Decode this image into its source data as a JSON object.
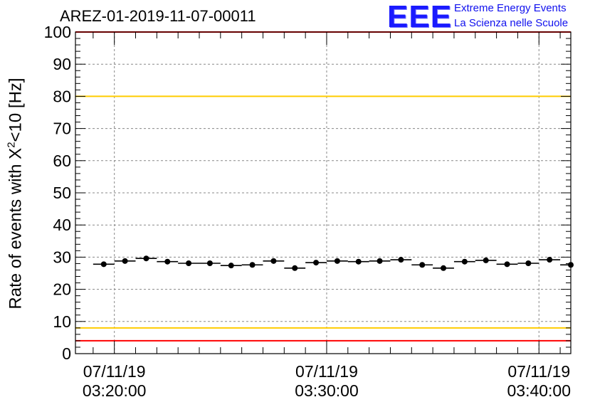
{
  "title": "AREZ-01-2019-11-07-00011",
  "logo": {
    "mark": "EEE",
    "line1": "Extreme Energy Events",
    "line2": "La Scienza nelle Scuole"
  },
  "colors": {
    "frame": "#000000",
    "grid": "#888888",
    "red_line": "#ff0000",
    "yellow_line": "#ffcc00",
    "marker": "#000000",
    "logo_blue": "#1a1aff"
  },
  "chart_data": {
    "type": "scatter",
    "title": "AREZ-01-2019-11-07-00011",
    "ylabel_prefix": "Rate of events with X",
    "ylabel_sup": "2",
    "ylabel_suffix": "<10 [Hz]",
    "ylim": [
      0,
      100
    ],
    "yticks": [
      0,
      10,
      20,
      30,
      40,
      50,
      60,
      70,
      80,
      90,
      100
    ],
    "xlim": [
      "2019-11-07 03:18:10",
      "2019-11-07 03:41:30"
    ],
    "xticks": [
      {
        "t": "2019-11-07 03:20:00",
        "date": "07/11/19",
        "time": "03:20:00"
      },
      {
        "t": "2019-11-07 03:30:00",
        "date": "07/11/19",
        "time": "03:30:00"
      },
      {
        "t": "2019-11-07 03:40:00",
        "date": "07/11/19",
        "time": "03:40:00"
      }
    ],
    "grid": true,
    "reference_lines": [
      {
        "y": 100,
        "color": "red"
      },
      {
        "y": 80,
        "color": "yellow"
      },
      {
        "y": 8,
        "color": "yellow"
      },
      {
        "y": 4,
        "color": "red"
      }
    ],
    "bin_width_seconds": 60,
    "points": [
      {
        "t": "2019-11-07 03:19:30",
        "y": 27.8
      },
      {
        "t": "2019-11-07 03:20:30",
        "y": 28.8
      },
      {
        "t": "2019-11-07 03:21:30",
        "y": 29.6
      },
      {
        "t": "2019-11-07 03:22:30",
        "y": 28.6
      },
      {
        "t": "2019-11-07 03:23:30",
        "y": 28.1
      },
      {
        "t": "2019-11-07 03:24:30",
        "y": 28.1
      },
      {
        "t": "2019-11-07 03:25:30",
        "y": 27.4
      },
      {
        "t": "2019-11-07 03:26:30",
        "y": 27.6
      },
      {
        "t": "2019-11-07 03:27:30",
        "y": 28.8
      },
      {
        "t": "2019-11-07 03:28:30",
        "y": 26.6
      },
      {
        "t": "2019-11-07 03:29:30",
        "y": 28.3
      },
      {
        "t": "2019-11-07 03:30:30",
        "y": 28.8
      },
      {
        "t": "2019-11-07 03:31:30",
        "y": 28.6
      },
      {
        "t": "2019-11-07 03:32:30",
        "y": 28.8
      },
      {
        "t": "2019-11-07 03:33:30",
        "y": 29.2
      },
      {
        "t": "2019-11-07 03:34:30",
        "y": 27.6
      },
      {
        "t": "2019-11-07 03:35:30",
        "y": 26.6
      },
      {
        "t": "2019-11-07 03:36:30",
        "y": 28.6
      },
      {
        "t": "2019-11-07 03:37:30",
        "y": 29.0
      },
      {
        "t": "2019-11-07 03:38:30",
        "y": 27.8
      },
      {
        "t": "2019-11-07 03:39:30",
        "y": 28.1
      },
      {
        "t": "2019-11-07 03:40:30",
        "y": 29.2
      },
      {
        "t": "2019-11-07 03:41:30",
        "y": 27.6
      }
    ]
  }
}
